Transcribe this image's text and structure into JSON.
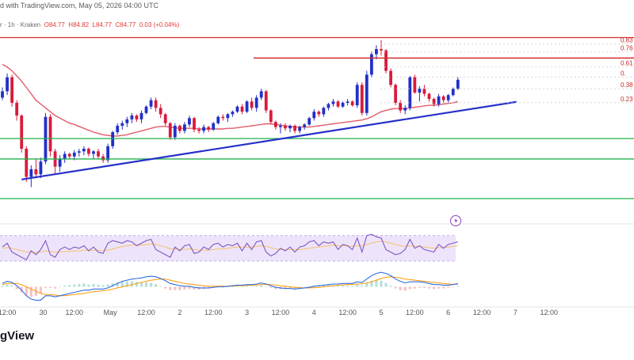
{
  "header": {
    "publisher_text": "d with TradingView.com, May 05, 2026 04:00 UTC"
  },
  "symbol_line": {
    "prefix": "r · 1h · Kraken",
    "open": "O84.77",
    "high": "H84.82",
    "low": "L84.77",
    "close": "C84.77",
    "change": "0.03 (+0.04%)"
  },
  "logo_text": "gView",
  "colors": {
    "up": "#2130c8",
    "down": "#d81b3c",
    "ma": "#e25c6a",
    "trendline": "#2630c9",
    "support": "#22b04b",
    "resistance": "#d32f2f",
    "rsi_line": "#7e57c2",
    "rsi_signal": "#f5c26b",
    "rsi_band": "#ede4fb",
    "macd": "#2f6fe0",
    "macd_signal": "#ff9800"
  },
  "chart_data": [
    {
      "type": "candlestick",
      "candles": [
        [
          81.6,
          82.4,
          81.4,
          82.1
        ],
        [
          82.1,
          83.5,
          81.8,
          83.2
        ],
        [
          83.2,
          83.4,
          80.9,
          81.2
        ],
        [
          81.2,
          81.4,
          79.8,
          80.2
        ],
        [
          80.2,
          80.3,
          77.3,
          77.6
        ],
        [
          77.6,
          77.8,
          75.0,
          75.4
        ],
        [
          75.4,
          76.3,
          74.6,
          76.0
        ],
        [
          76.0,
          76.8,
          75.3,
          75.6
        ],
        [
          75.6,
          76.9,
          75.3,
          76.6
        ],
        [
          76.6,
          80.4,
          76.4,
          80.1
        ],
        [
          80.1,
          80.3,
          77.0,
          77.4
        ],
        [
          77.4,
          77.6,
          75.6,
          76.2
        ],
        [
          76.2,
          77.1,
          75.8,
          76.8
        ],
        [
          76.8,
          77.4,
          76.5,
          77.2
        ],
        [
          77.2,
          77.3,
          76.8,
          77.0
        ],
        [
          77.0,
          77.5,
          76.7,
          77.3
        ],
        [
          77.3,
          77.6,
          77.0,
          77.4
        ],
        [
          77.4,
          77.8,
          77.1,
          77.6
        ],
        [
          77.6,
          77.7,
          77.0,
          77.2
        ],
        [
          77.2,
          77.5,
          76.8,
          77.4
        ],
        [
          77.4,
          77.6,
          76.8,
          77.0
        ],
        [
          77.0,
          77.2,
          76.5,
          76.7
        ],
        [
          76.7,
          78.0,
          76.5,
          77.8
        ],
        [
          77.8,
          79.0,
          77.6,
          78.9
        ],
        [
          78.9,
          79.6,
          78.7,
          79.4
        ],
        [
          79.4,
          79.8,
          79.1,
          79.6
        ],
        [
          79.6,
          80.1,
          79.3,
          79.9
        ],
        [
          79.9,
          80.4,
          79.6,
          80.2
        ],
        [
          80.2,
          80.3,
          79.7,
          79.9
        ],
        [
          79.9,
          80.6,
          79.6,
          80.4
        ],
        [
          80.4,
          81.0,
          80.3,
          80.9
        ],
        [
          80.9,
          81.6,
          80.7,
          81.4
        ],
        [
          81.4,
          81.6,
          80.5,
          80.8
        ],
        [
          80.8,
          81.1,
          80.0,
          80.3
        ],
        [
          80.3,
          80.4,
          79.4,
          79.6
        ],
        [
          79.6,
          79.7,
          78.3,
          78.5
        ],
        [
          78.5,
          79.6,
          78.3,
          79.4
        ],
        [
          79.4,
          79.5,
          78.8,
          79.0
        ],
        [
          79.0,
          79.7,
          78.8,
          79.5
        ],
        [
          79.5,
          80.2,
          79.3,
          80.0
        ],
        [
          80.0,
          80.1,
          78.9,
          79.1
        ],
        [
          79.1,
          79.3,
          78.8,
          79.0
        ],
        [
          79.0,
          79.5,
          78.8,
          79.3
        ],
        [
          79.3,
          79.4,
          78.9,
          79.1
        ],
        [
          79.1,
          79.7,
          79.0,
          79.6
        ],
        [
          79.6,
          80.2,
          79.5,
          80.1
        ],
        [
          80.1,
          80.3,
          79.8,
          80.0
        ],
        [
          80.0,
          80.4,
          79.7,
          80.3
        ],
        [
          80.3,
          80.6,
          80.1,
          80.5
        ],
        [
          80.5,
          81.0,
          80.4,
          80.9
        ],
        [
          80.9,
          81.1,
          80.3,
          80.5
        ],
        [
          80.5,
          81.4,
          80.4,
          81.3
        ],
        [
          81.3,
          81.6,
          80.6,
          80.8
        ],
        [
          80.8,
          81.8,
          80.5,
          81.6
        ],
        [
          81.6,
          82.3,
          81.4,
          82.1
        ],
        [
          82.1,
          82.2,
          80.4,
          80.6
        ],
        [
          80.6,
          80.7,
          79.5,
          79.7
        ],
        [
          79.7,
          79.8,
          79.1,
          79.3
        ],
        [
          79.3,
          79.6,
          78.8,
          79.4
        ],
        [
          79.4,
          79.6,
          79.0,
          79.2
        ],
        [
          79.2,
          79.5,
          78.9,
          79.4
        ],
        [
          79.4,
          79.5,
          78.8,
          79.0
        ],
        [
          79.0,
          79.4,
          78.8,
          79.3
        ],
        [
          79.3,
          79.6,
          79.1,
          79.5
        ],
        [
          79.5,
          80.1,
          79.4,
          80.0
        ],
        [
          80.0,
          80.7,
          79.8,
          80.5
        ],
        [
          80.5,
          80.6,
          80.1,
          80.3
        ],
        [
          80.3,
          80.9,
          80.1,
          80.8
        ],
        [
          80.8,
          81.2,
          80.6,
          81.1
        ],
        [
          81.1,
          81.5,
          80.9,
          81.3
        ],
        [
          81.3,
          81.4,
          80.8,
          80.9
        ],
        [
          80.9,
          81.3,
          80.8,
          81.2
        ],
        [
          81.2,
          81.5,
          81.0,
          81.3
        ],
        [
          81.3,
          81.4,
          80.9,
          81.0
        ],
        [
          81.0,
          82.8,
          80.8,
          82.6
        ],
        [
          82.6,
          82.8,
          80.2,
          80.4
        ],
        [
          80.4,
          83.7,
          80.2,
          83.4
        ],
        [
          83.4,
          85.2,
          83.2,
          85.0
        ],
        [
          85.0,
          85.7,
          84.6,
          85.4
        ],
        [
          85.4,
          86.1,
          84.9,
          85.3
        ],
        [
          85.3,
          85.4,
          83.5,
          83.7
        ],
        [
          83.7,
          83.9,
          82.4,
          82.6
        ],
        [
          82.6,
          82.7,
          81.0,
          81.2
        ],
        [
          81.2,
          81.4,
          80.4,
          80.6
        ],
        [
          80.6,
          81.0,
          80.3,
          80.8
        ],
        [
          80.8,
          83.3,
          80.6,
          83.2
        ],
        [
          83.2,
          83.4,
          81.9,
          82.0
        ],
        [
          82.0,
          82.5,
          81.3,
          82.3
        ],
        [
          82.3,
          82.6,
          81.7,
          81.9
        ],
        [
          81.9,
          82.0,
          81.3,
          81.5
        ],
        [
          81.5,
          81.6,
          80.9,
          81.1
        ],
        [
          81.1,
          81.9,
          80.9,
          81.7
        ],
        [
          81.7,
          81.8,
          81.2,
          81.4
        ],
        [
          81.4,
          81.9,
          81.2,
          81.8
        ],
        [
          81.8,
          82.4,
          81.7,
          82.3
        ],
        [
          82.3,
          83.2,
          82.2,
          83.0
        ]
      ],
      "moving_average": [
        84.2,
        84.0,
        83.7,
        83.3,
        82.9,
        82.4,
        81.9,
        81.4,
        81.1,
        80.8,
        80.5,
        80.2,
        80.0,
        79.8,
        79.6,
        79.5,
        79.35,
        79.2,
        79.05,
        78.9,
        78.8,
        78.7,
        78.65,
        78.6,
        78.6,
        78.65,
        78.7,
        78.8,
        78.9,
        79.0,
        79.1,
        79.2,
        79.3,
        79.35,
        79.35,
        79.3,
        79.25,
        79.2,
        79.2,
        79.2,
        79.2,
        79.15,
        79.15,
        79.15,
        79.15,
        79.15,
        79.15,
        79.2,
        79.2,
        79.25,
        79.3,
        79.35,
        79.4,
        79.45,
        79.5,
        79.55,
        79.55,
        79.5,
        79.45,
        79.4,
        79.35,
        79.3,
        79.3,
        79.3,
        79.3,
        79.35,
        79.4,
        79.45,
        79.5,
        79.55,
        79.6,
        79.65,
        79.7,
        79.75,
        79.8,
        79.85,
        79.95,
        80.1,
        80.3,
        80.5,
        80.6,
        80.7,
        80.75,
        80.75,
        80.75,
        80.8,
        80.85,
        80.9,
        80.95,
        81.0,
        81.0,
        81.05,
        81.1,
        81.15,
        81.2,
        81.3
      ],
      "levels": {
        "resistance_upper": 86.3,
        "resistance_lower": 84.7,
        "support_1": 78.4,
        "support_2": 76.8,
        "support_3": 73.7
      },
      "trendline": {
        "x": [
          4,
          94
        ],
        "y": [
          75.2,
          80.9
        ]
      },
      "fib_labels": [
        {
          "text": "0.83",
          "y": 85.8
        },
        {
          "text": "0.76",
          "y": 85.2
        },
        {
          "text": "0.61",
          "y": 84.0
        },
        {
          "text": "0.",
          "y": 83.2
        },
        {
          "text": "0.38",
          "y": 82.3
        },
        {
          "text": "0.23",
          "y": 81.2
        }
      ],
      "x_tick_labels": [
        {
          "text": "12:00",
          "x": 1.5
        },
        {
          "text": "30",
          "x": 9
        },
        {
          "text": "12:00",
          "x": 15.5
        },
        {
          "text": "May",
          "x": 23
        },
        {
          "text": "12:00",
          "x": 30.5
        },
        {
          "text": "2",
          "x": 37.5
        },
        {
          "text": "12:00",
          "x": 44.5
        },
        {
          "text": "3",
          "x": 51.5
        },
        {
          "text": "12:00",
          "x": 58.5
        },
        {
          "text": "4",
          "x": 65.5
        },
        {
          "text": "12:00",
          "x": 72.5
        },
        {
          "text": "5",
          "x": 79.5
        },
        {
          "text": "12:00",
          "x": 86.5
        },
        {
          "text": "6",
          "x": 93.5
        },
        {
          "text": "12:00",
          "x": 100.5
        },
        {
          "text": "7",
          "x": 107.5
        },
        {
          "text": "12:00",
          "x": 114.5
        }
      ],
      "ylim": [
        72.4,
        87.2
      ],
      "xlim": [
        -0.5,
        115
      ]
    },
    {
      "type": "line",
      "rsi": [
        52,
        58,
        44,
        40,
        36,
        32,
        46,
        40,
        48,
        62,
        40,
        36,
        48,
        52,
        48,
        52,
        50,
        54,
        46,
        52,
        44,
        42,
        58,
        62,
        60,
        58,
        62,
        60,
        54,
        58,
        62,
        64,
        48,
        44,
        40,
        36,
        52,
        46,
        54,
        56,
        42,
        44,
        52,
        48,
        56,
        58,
        52,
        56,
        54,
        58,
        46,
        58,
        48,
        60,
        62,
        44,
        38,
        42,
        50,
        46,
        52,
        44,
        52,
        54,
        60,
        62,
        54,
        60,
        58,
        60,
        48,
        56,
        54,
        48,
        66,
        44,
        70,
        72,
        68,
        66,
        48,
        44,
        40,
        42,
        48,
        64,
        50,
        54,
        48,
        46,
        44,
        56,
        50,
        56,
        58,
        60
      ],
      "rsi_signal": [
        50,
        51,
        50,
        48,
        46,
        44,
        44,
        43,
        44,
        46,
        45,
        44,
        44,
        45,
        45,
        46,
        46,
        47,
        47,
        47,
        47,
        46,
        47,
        49,
        51,
        53,
        54,
        55,
        55,
        55,
        56,
        57,
        56,
        54,
        52,
        49,
        49,
        48,
        48,
        49,
        48,
        47,
        47,
        47,
        48,
        49,
        49,
        50,
        51,
        52,
        52,
        52,
        52,
        53,
        54,
        53,
        51,
        49,
        48,
        48,
        48,
        48,
        48,
        49,
        50,
        51,
        52,
        53,
        54,
        55,
        54,
        54,
        54,
        53,
        54,
        54,
        56,
        58,
        60,
        61,
        60,
        58,
        56,
        54,
        53,
        54,
        53,
        53,
        52,
        51,
        50,
        51,
        51,
        52,
        53,
        54
      ],
      "band": [
        30,
        70
      ],
      "ylim": [
        20,
        82
      ]
    },
    {
      "type": "line",
      "macd": [
        0.3,
        0.5,
        0.4,
        0.1,
        -0.3,
        -0.8,
        -1.1,
        -1.2,
        -1.2,
        -0.8,
        -0.8,
        -0.9,
        -0.8,
        -0.7,
        -0.6,
        -0.5,
        -0.4,
        -0.3,
        -0.3,
        -0.2,
        -0.2,
        -0.2,
        -0.1,
        0.1,
        0.3,
        0.5,
        0.6,
        0.7,
        0.75,
        0.8,
        0.9,
        0.95,
        0.9,
        0.75,
        0.55,
        0.3,
        0.2,
        0.1,
        0.05,
        0.05,
        -0.05,
        -0.1,
        -0.1,
        -0.1,
        -0.05,
        0.0,
        0.0,
        0.05,
        0.1,
        0.15,
        0.15,
        0.2,
        0.2,
        0.25,
        0.35,
        0.25,
        0.1,
        -0.05,
        -0.1,
        -0.15,
        -0.15,
        -0.2,
        -0.15,
        -0.1,
        -0.05,
        0.05,
        0.1,
        0.15,
        0.2,
        0.25,
        0.25,
        0.3,
        0.3,
        0.3,
        0.45,
        0.4,
        0.7,
        1.0,
        1.2,
        1.3,
        1.2,
        1.0,
        0.7,
        0.5,
        0.35,
        0.45,
        0.45,
        0.45,
        0.4,
        0.3,
        0.2,
        0.2,
        0.15,
        0.15,
        0.2,
        0.3
      ],
      "macd_signal": [
        0.2,
        0.3,
        0.3,
        0.3,
        0.2,
        0.0,
        -0.2,
        -0.4,
        -0.6,
        -0.7,
        -0.7,
        -0.75,
        -0.8,
        -0.8,
        -0.75,
        -0.7,
        -0.65,
        -0.6,
        -0.5,
        -0.45,
        -0.4,
        -0.35,
        -0.3,
        -0.2,
        -0.1,
        0.0,
        0.1,
        0.2,
        0.3,
        0.4,
        0.5,
        0.6,
        0.65,
        0.7,
        0.7,
        0.6,
        0.5,
        0.4,
        0.3,
        0.25,
        0.2,
        0.15,
        0.1,
        0.05,
        0.05,
        0.05,
        0.05,
        0.05,
        0.05,
        0.1,
        0.1,
        0.12,
        0.15,
        0.17,
        0.2,
        0.22,
        0.2,
        0.15,
        0.1,
        0.05,
        0.0,
        -0.05,
        -0.08,
        -0.1,
        -0.1,
        -0.08,
        -0.05,
        0.0,
        0.05,
        0.1,
        0.15,
        0.18,
        0.2,
        0.22,
        0.25,
        0.28,
        0.35,
        0.45,
        0.6,
        0.75,
        0.85,
        0.9,
        0.85,
        0.8,
        0.7,
        0.65,
        0.6,
        0.55,
        0.5,
        0.45,
        0.4,
        0.35,
        0.3,
        0.25,
        0.22,
        0.22
      ],
      "ylim": [
        -1.6,
        1.6
      ]
    }
  ]
}
